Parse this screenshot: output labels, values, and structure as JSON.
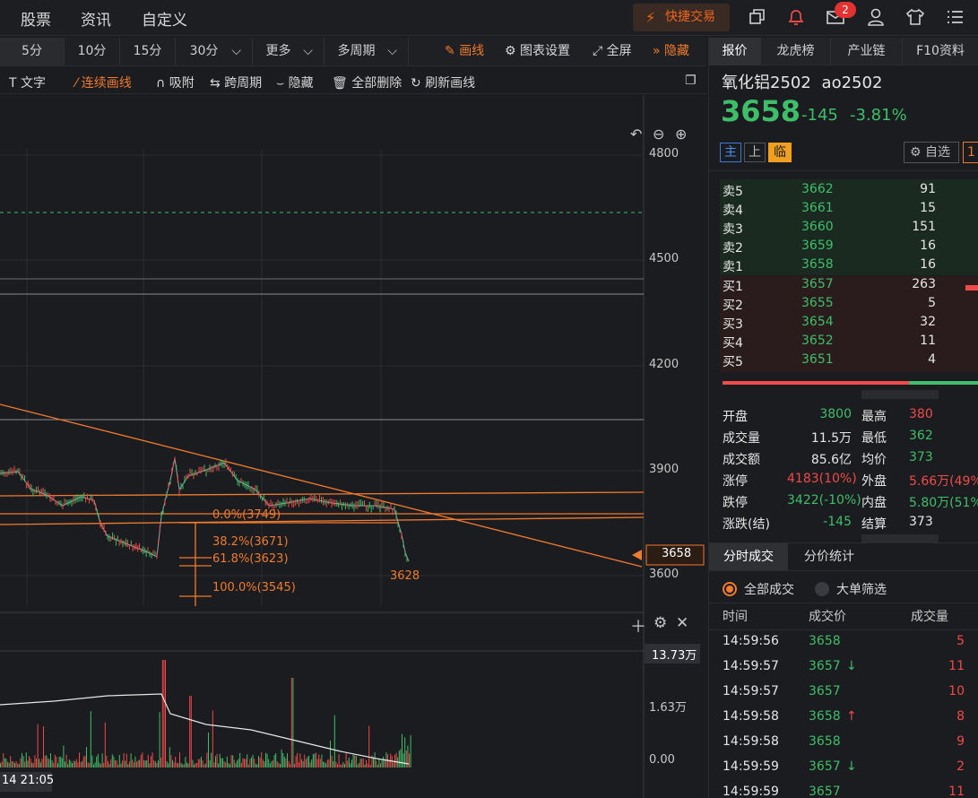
{
  "topnav": {
    "stocks": "股票",
    "news": "资讯",
    "custom": "自定义",
    "quick_trade": "快捷交易",
    "mail_count": "2"
  },
  "periods": [
    "5分",
    "10分",
    "15分",
    "30分",
    "更多",
    "多周期"
  ],
  "toolbar": {
    "draw": "画线",
    "chart_settings": "图表设置",
    "fullscreen": "全屏",
    "hide": "隐藏"
  },
  "draw_tools": {
    "text": "文字",
    "continuous": "连续画线",
    "snap": "吸附",
    "cross_period": "跨周期",
    "hide": "隐藏",
    "delete_all": "全部删除",
    "refresh": "刷新画线"
  },
  "price_axis": [
    "4800",
    "4500",
    "4200",
    "3900",
    "3600"
  ],
  "volume_axis": [
    "13.73万",
    "1.63万",
    "0.00"
  ],
  "current_price_tag": "3658",
  "time_label": "14 21:05",
  "fib": {
    "level0": "0.0%(3749)",
    "level382": "38.2%(3671)",
    "level618": "61.8%(3623)",
    "level100": "100.0%(3545)"
  },
  "low_label": "3628",
  "rp_tabs": [
    "报价",
    "龙虎榜",
    "产业链",
    "F10资料"
  ],
  "quote": {
    "name": "氧化铝2502",
    "code": "ao2502",
    "price": "3658",
    "change": "-145",
    "change_pct": "-3.81%",
    "tags": [
      "主",
      "上",
      "临"
    ],
    "watch": "自选"
  },
  "sell_orders": [
    {
      "label": "卖5",
      "price": "3662",
      "vol": "91"
    },
    {
      "label": "卖4",
      "price": "3661",
      "vol": "15"
    },
    {
      "label": "卖3",
      "price": "3660",
      "vol": "151"
    },
    {
      "label": "卖2",
      "price": "3659",
      "vol": "16"
    },
    {
      "label": "卖1",
      "price": "3658",
      "vol": "16"
    }
  ],
  "buy_orders": [
    {
      "label": "买1",
      "price": "3657",
      "vol": "263"
    },
    {
      "label": "买2",
      "price": "3655",
      "vol": "5"
    },
    {
      "label": "买3",
      "price": "3654",
      "vol": "32"
    },
    {
      "label": "买4",
      "price": "3652",
      "vol": "11"
    },
    {
      "label": "买5",
      "price": "3651",
      "vol": "4"
    }
  ],
  "stats": [
    {
      "l1": "开盘",
      "v1": "3800",
      "l2": "最高",
      "v2": "380"
    },
    {
      "l1": "成交量",
      "v1": "11.5万",
      "l2": "最低",
      "v2": "362"
    },
    {
      "l1": "成交额",
      "v1": "85.6亿",
      "l2": "均价",
      "v2": "373"
    },
    {
      "l1": "涨停",
      "v1": "4183(10%)",
      "l2": "外盘",
      "v2": "5.66万(49%"
    },
    {
      "l1": "跌停",
      "v1": "3422(-10%)",
      "l2": "内盘",
      "v2": "5.80万(51%"
    },
    {
      "l1": "涨跌(结)",
      "v1": "-145",
      "l2": "结算",
      "v2": "373"
    }
  ],
  "trade_tabs": [
    "分时成交",
    "分价统计"
  ],
  "filters": {
    "all": "全部成交",
    "big": "大单筛选"
  },
  "tick_headers": {
    "time": "时间",
    "price": "成交价",
    "vol": "成交量"
  },
  "ticks": [
    {
      "time": "14:59:56",
      "price": "3658",
      "arrow": "",
      "vol": "5"
    },
    {
      "time": "14:59:57",
      "price": "3657",
      "arrow": "↓",
      "vol": "11"
    },
    {
      "time": "14:59:57",
      "price": "3657",
      "arrow": "",
      "vol": "10"
    },
    {
      "time": "14:59:58",
      "price": "3658",
      "arrow": "↑",
      "vol": "8"
    },
    {
      "time": "14:59:58",
      "price": "3658",
      "arrow": "",
      "vol": "9"
    },
    {
      "time": "14:59:59",
      "price": "3657",
      "arrow": "↓",
      "vol": "2"
    },
    {
      "time": "14:59:59",
      "price": "3657",
      "arrow": "",
      "vol": "11"
    }
  ]
}
